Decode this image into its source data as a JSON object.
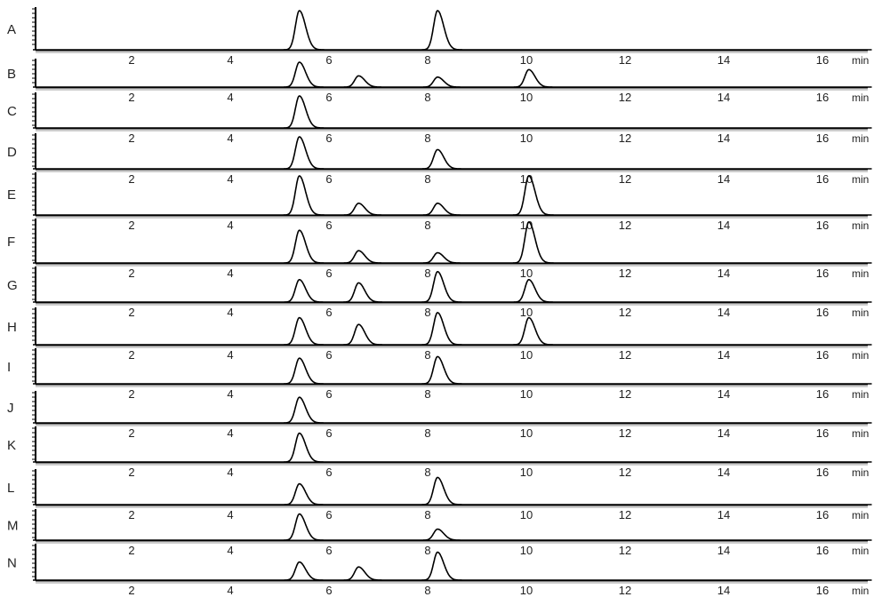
{
  "chart_data": {
    "type": "line",
    "x_unit": "min",
    "x_ticks": [
      2,
      4,
      6,
      8,
      10,
      12,
      14,
      16
    ],
    "xlim": [
      0,
      17
    ],
    "grid": false,
    "legend": "none",
    "line_color": "#000000",
    "peak_width_sd": 0.1,
    "panels": [
      {
        "label": "A",
        "peaks": [
          {
            "rt": 5.4,
            "h": 1.0
          },
          {
            "rt": 8.2,
            "h": 1.0
          }
        ]
      },
      {
        "label": "B",
        "peaks": [
          {
            "rt": 5.4,
            "h": 1.0
          },
          {
            "rt": 6.6,
            "h": 0.45
          },
          {
            "rt": 8.2,
            "h": 0.4
          },
          {
            "rt": 10.05,
            "h": 0.7
          }
        ]
      },
      {
        "label": "C",
        "peaks": [
          {
            "rt": 5.4,
            "h": 1.0
          }
        ]
      },
      {
        "label": "D",
        "peaks": [
          {
            "rt": 5.4,
            "h": 1.0
          },
          {
            "rt": 8.2,
            "h": 0.6
          }
        ]
      },
      {
        "label": "E",
        "peaks": [
          {
            "rt": 5.4,
            "h": 1.0
          },
          {
            "rt": 6.6,
            "h": 0.3
          },
          {
            "rt": 8.2,
            "h": 0.3
          },
          {
            "rt": 10.05,
            "h": 1.0
          }
        ]
      },
      {
        "label": "F",
        "peaks": [
          {
            "rt": 5.4,
            "h": 0.8
          },
          {
            "rt": 6.6,
            "h": 0.3
          },
          {
            "rt": 8.2,
            "h": 0.25
          },
          {
            "rt": 10.05,
            "h": 1.0
          }
        ]
      },
      {
        "label": "G",
        "peaks": [
          {
            "rt": 5.4,
            "h": 0.7
          },
          {
            "rt": 6.6,
            "h": 0.6
          },
          {
            "rt": 8.2,
            "h": 0.95
          },
          {
            "rt": 10.05,
            "h": 0.7
          }
        ]
      },
      {
        "label": "H",
        "peaks": [
          {
            "rt": 5.4,
            "h": 0.8
          },
          {
            "rt": 6.6,
            "h": 0.6
          },
          {
            "rt": 8.2,
            "h": 0.95
          },
          {
            "rt": 10.05,
            "h": 0.8
          }
        ]
      },
      {
        "label": "I",
        "peaks": [
          {
            "rt": 5.4,
            "h": 0.8
          },
          {
            "rt": 8.2,
            "h": 0.85
          }
        ]
      },
      {
        "label": "J",
        "peaks": [
          {
            "rt": 5.4,
            "h": 0.9
          }
        ]
      },
      {
        "label": "K",
        "peaks": [
          {
            "rt": 5.4,
            "h": 0.9
          }
        ]
      },
      {
        "label": "L",
        "peaks": [
          {
            "rt": 5.4,
            "h": 0.65
          },
          {
            "rt": 8.2,
            "h": 0.85
          }
        ]
      },
      {
        "label": "M",
        "peaks": [
          {
            "rt": 5.4,
            "h": 0.95
          },
          {
            "rt": 8.2,
            "h": 0.4
          }
        ]
      },
      {
        "label": "N",
        "peaks": [
          {
            "rt": 5.4,
            "h": 0.55
          },
          {
            "rt": 6.6,
            "h": 0.4
          },
          {
            "rt": 8.2,
            "h": 0.85
          }
        ]
      }
    ]
  }
}
